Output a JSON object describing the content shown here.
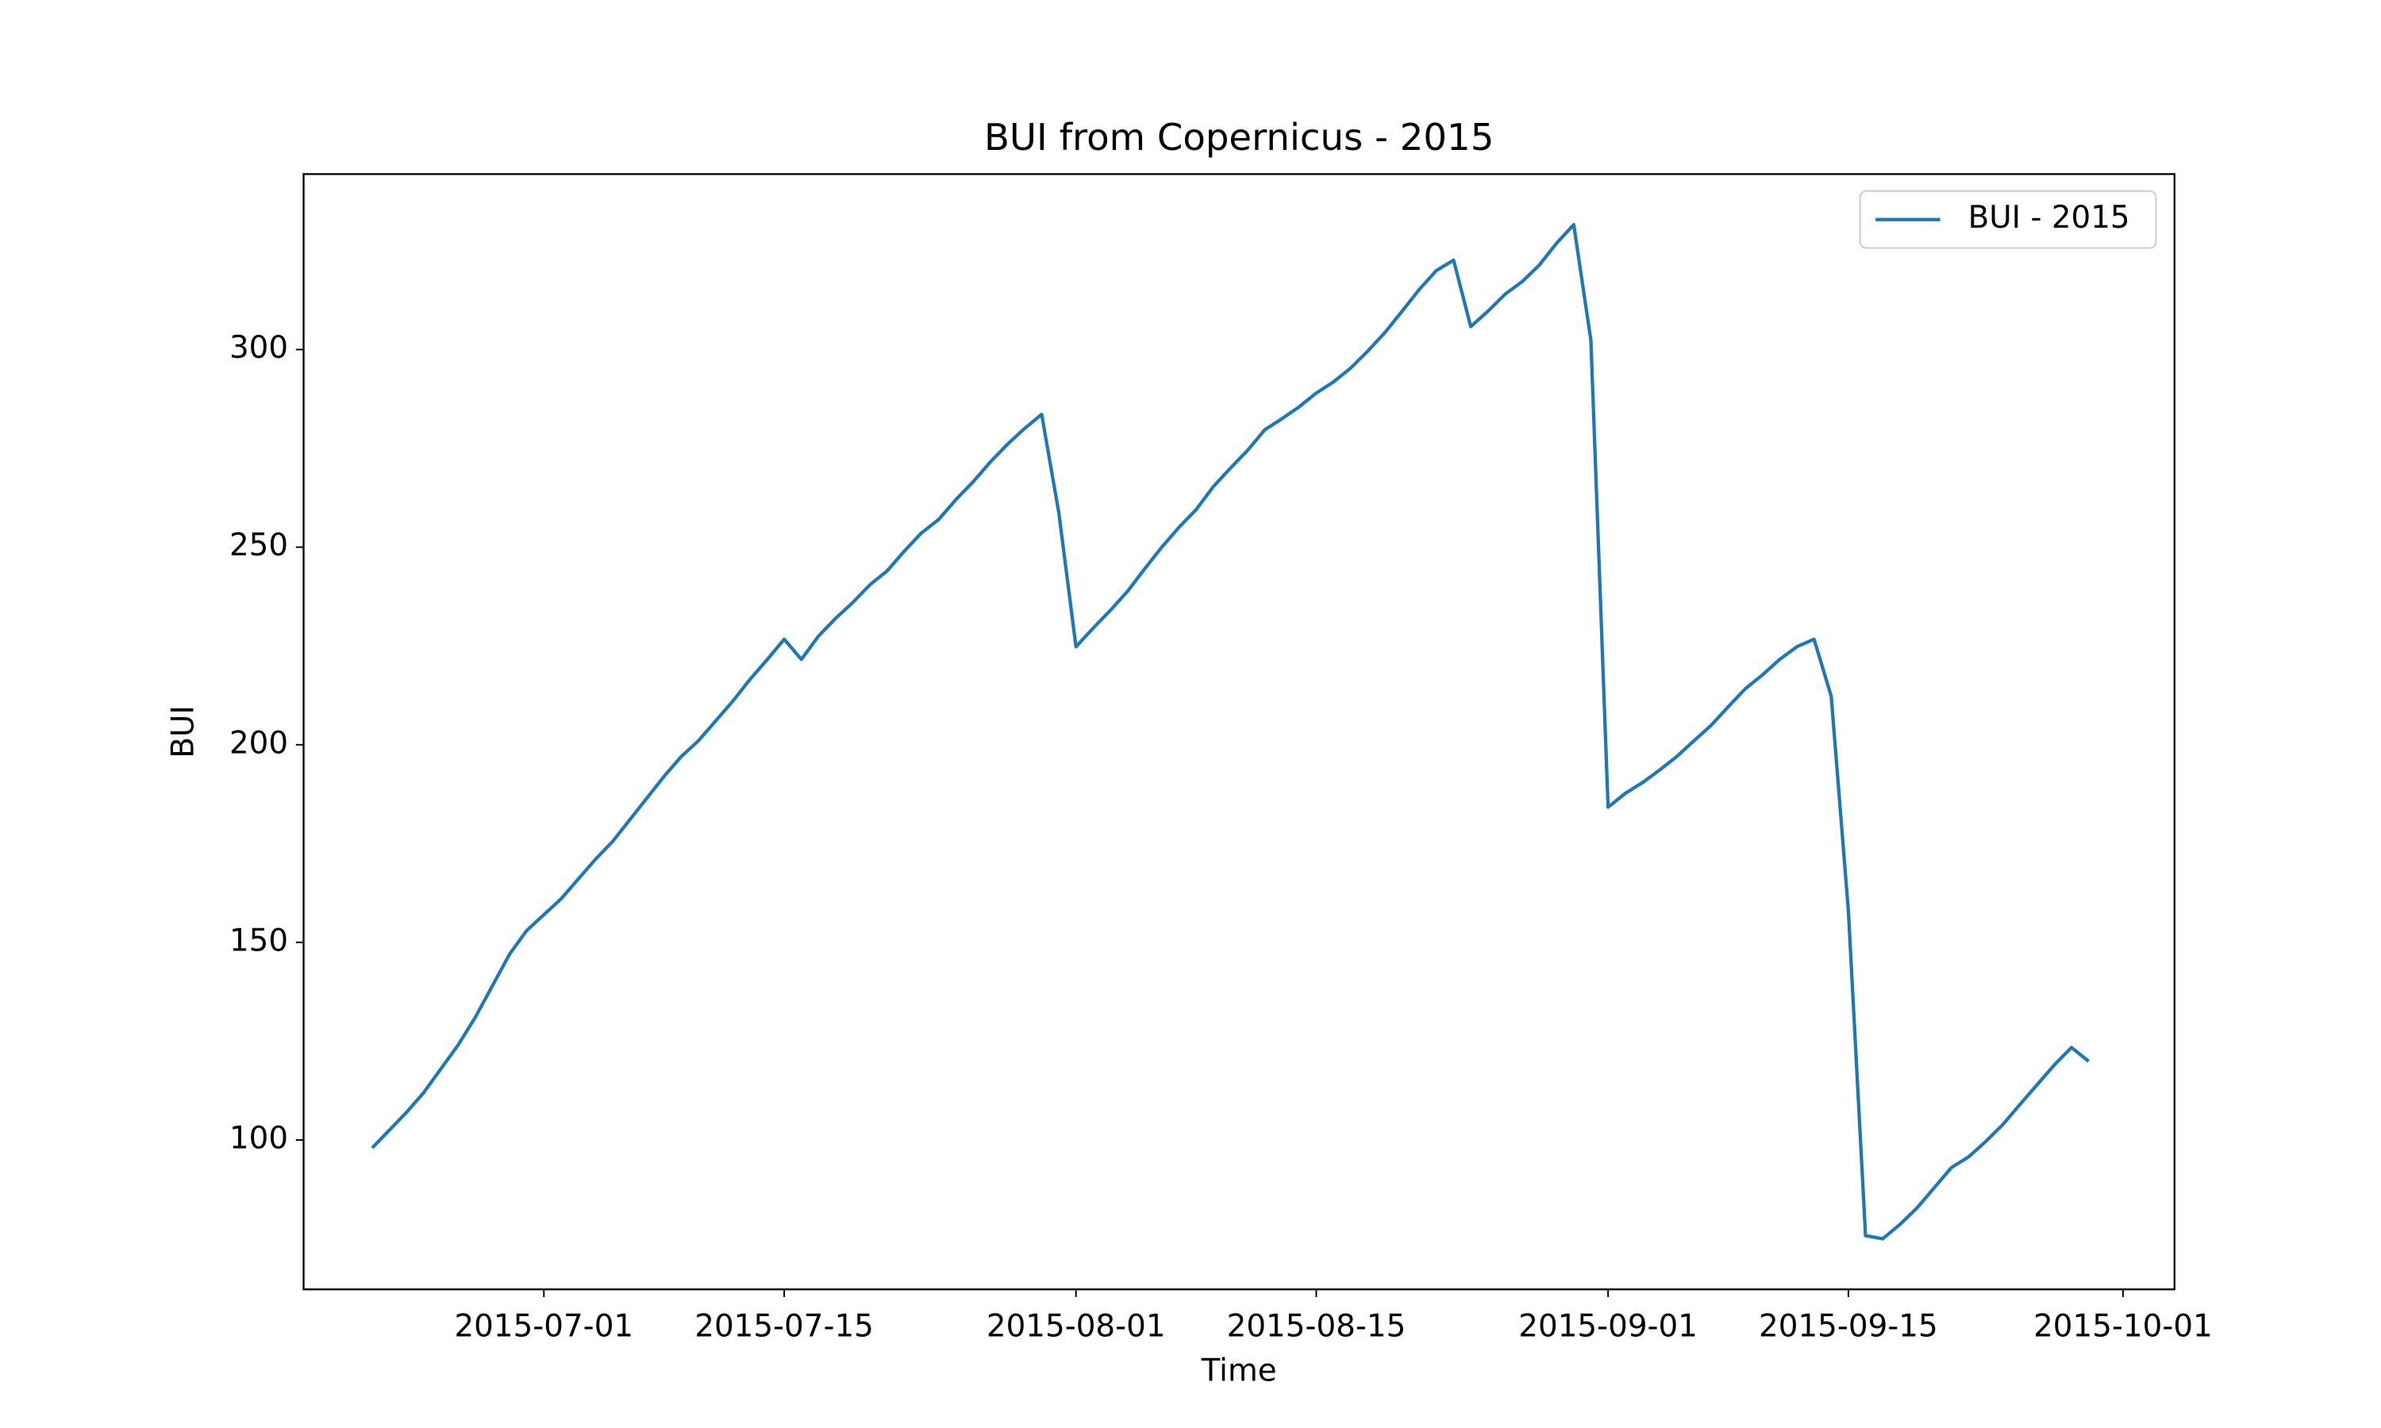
{
  "chart_data": {
    "type": "line",
    "title": "BUI from Copernicus - 2015",
    "xlabel": "Time",
    "ylabel": "BUI",
    "x": [
      "2015-06-21",
      "2015-06-22",
      "2015-06-23",
      "2015-06-24",
      "2015-06-25",
      "2015-06-26",
      "2015-06-27",
      "2015-06-28",
      "2015-06-29",
      "2015-06-30",
      "2015-07-01",
      "2015-07-02",
      "2015-07-03",
      "2015-07-04",
      "2015-07-05",
      "2015-07-06",
      "2015-07-07",
      "2015-07-08",
      "2015-07-09",
      "2015-07-10",
      "2015-07-11",
      "2015-07-12",
      "2015-07-13",
      "2015-07-14",
      "2015-07-15",
      "2015-07-16",
      "2015-07-17",
      "2015-07-18",
      "2015-07-19",
      "2015-07-20",
      "2015-07-21",
      "2015-07-22",
      "2015-07-23",
      "2015-07-24",
      "2015-07-25",
      "2015-07-26",
      "2015-07-27",
      "2015-07-28",
      "2015-07-29",
      "2015-07-30",
      "2015-07-31",
      "2015-08-01",
      "2015-08-02",
      "2015-08-03",
      "2015-08-04",
      "2015-08-05",
      "2015-08-06",
      "2015-08-07",
      "2015-08-08",
      "2015-08-09",
      "2015-08-10",
      "2015-08-11",
      "2015-08-12",
      "2015-08-13",
      "2015-08-14",
      "2015-08-15",
      "2015-08-16",
      "2015-08-17",
      "2015-08-18",
      "2015-08-19",
      "2015-08-20",
      "2015-08-21",
      "2015-08-22",
      "2015-08-23",
      "2015-08-24",
      "2015-08-25",
      "2015-08-26",
      "2015-08-27",
      "2015-08-28",
      "2015-08-29",
      "2015-08-30",
      "2015-08-31",
      "2015-09-01",
      "2015-09-02",
      "2015-09-03",
      "2015-09-04",
      "2015-09-05",
      "2015-09-06",
      "2015-09-07",
      "2015-09-08",
      "2015-09-09",
      "2015-09-10",
      "2015-09-11",
      "2015-09-12",
      "2015-09-13",
      "2015-09-14",
      "2015-09-15",
      "2015-09-16",
      "2015-09-17",
      "2015-09-18",
      "2015-09-19",
      "2015-09-20",
      "2015-09-21",
      "2015-09-22",
      "2015-09-23",
      "2015-09-24",
      "2015-09-25",
      "2015-09-26",
      "2015-09-27",
      "2015-09-28",
      "2015-09-29"
    ],
    "series": [
      {
        "name": "BUI - 2015",
        "color": "#1f77b4",
        "values": [
          98,
          102.5,
          107,
          112,
          118,
          124,
          131,
          139,
          147,
          153,
          157,
          161,
          166,
          171,
          175.5,
          181,
          186.5,
          192,
          197,
          201,
          206,
          211,
          216.5,
          221.5,
          226.7,
          221.6,
          227.5,
          232,
          236,
          240.5,
          244,
          249,
          253.6,
          257,
          262,
          266.5,
          271.5,
          276,
          280,
          283.6,
          258.7,
          224.8,
          229.5,
          234,
          238.8,
          244.5,
          250,
          255,
          259.5,
          265.3,
          270,
          274.5,
          279.7,
          282.5,
          285.5,
          289,
          291.8,
          295.3,
          299.6,
          304.3,
          309.7,
          315.2,
          320,
          322.6,
          305.8,
          309.7,
          314,
          317.2,
          321.4,
          326.9,
          331.6,
          302.3,
          184.2,
          187.7,
          190.4,
          193.6,
          197,
          201,
          204.9,
          209.6,
          214.2,
          217.7,
          221.6,
          224.8,
          226.7,
          212.3,
          158,
          75.8,
          75,
          78.6,
          82.8,
          87.9,
          93,
          95.7,
          99.6,
          103.9,
          109,
          114,
          119,
          123.4,
          119.9
        ]
      }
    ],
    "xlim": [
      "2015-06-17",
      "2015-10-04"
    ],
    "xticks": [
      "2015-07-01",
      "2015-07-15",
      "2015-08-01",
      "2015-08-15",
      "2015-09-01",
      "2015-09-15",
      "2015-10-01"
    ],
    "ylim": [
      62.2,
      344.4
    ],
    "yticks": [
      100,
      150,
      200,
      250,
      300
    ],
    "grid": false,
    "legend": "upper right"
  }
}
